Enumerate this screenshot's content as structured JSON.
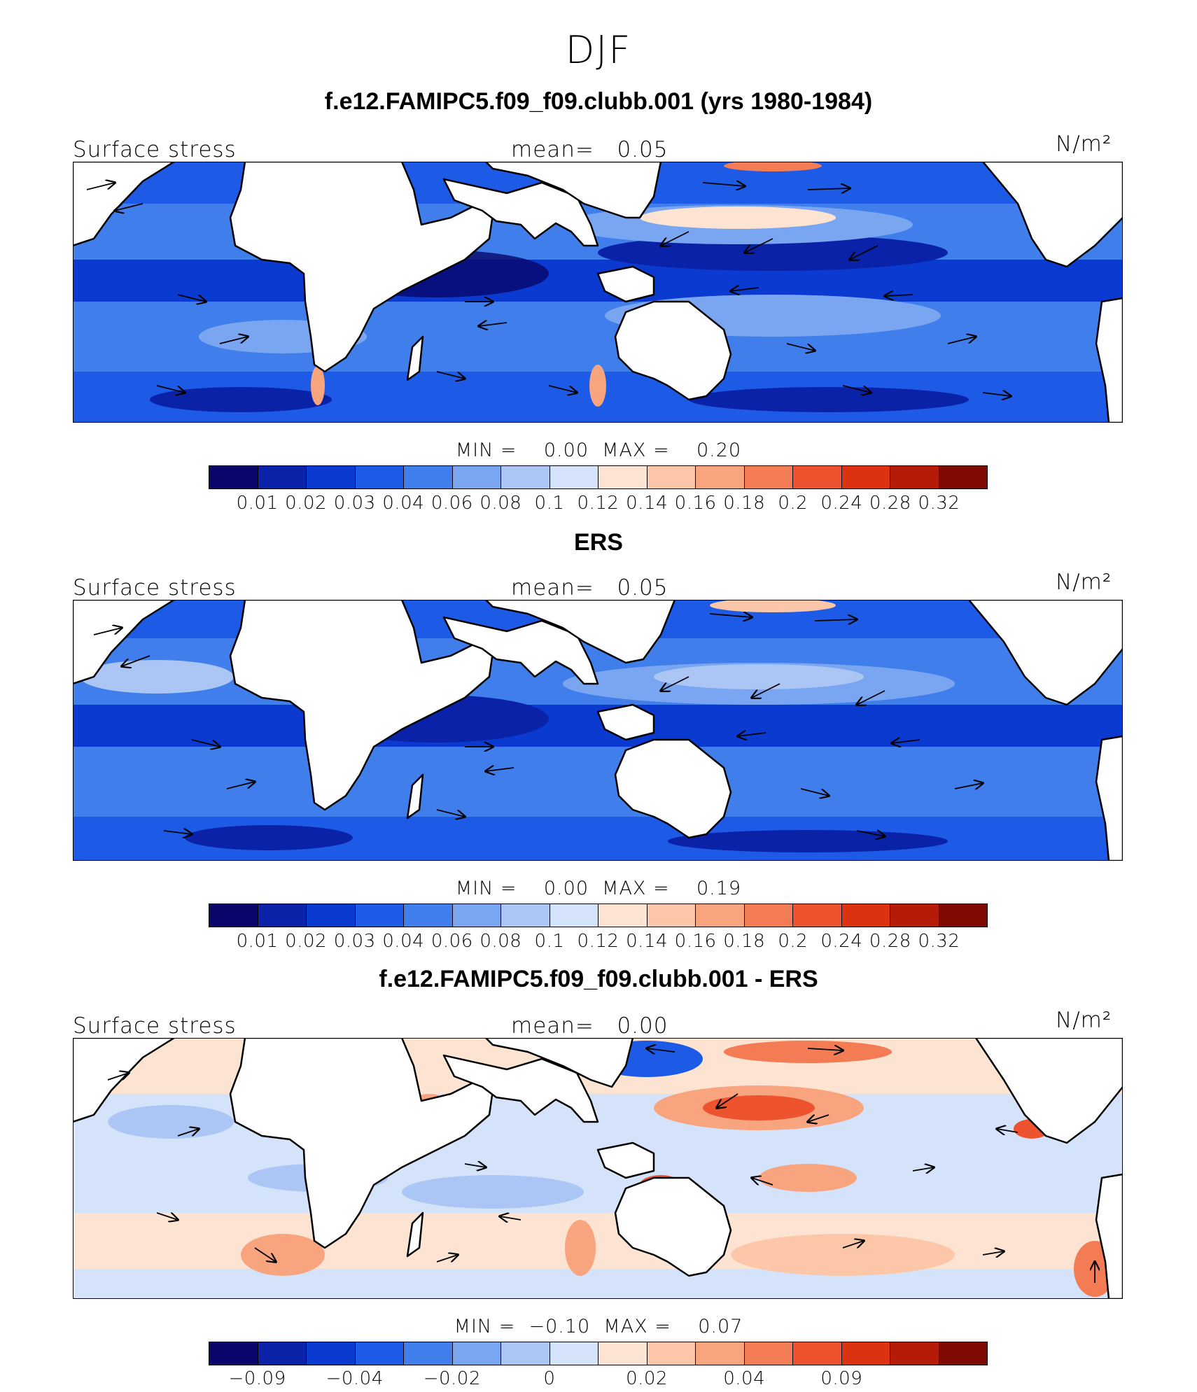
{
  "figure_title": "DJF",
  "palette": [
    "#08066b",
    "#0a22a8",
    "#0b3ad0",
    "#1d5ae6",
    "#3f7eeb",
    "#7aa6f1",
    "#abc6f5",
    "#d4e3fa",
    "#fde3d1",
    "#fbc7a8",
    "#f8a47e",
    "#f47c54",
    "#ee5330",
    "#dc3211",
    "#b41c08",
    "#7f0a02"
  ],
  "panels": [
    {
      "title": "f.e12.FAMIPC5.f09_f09.clubb.001 (yrs 1980-1984)",
      "variable": "Surface stress",
      "mean_label": "mean=   0.05",
      "units": "N/m²",
      "minmax": "MIN =    0.00  MAX =    0.20",
      "tick_labels": [
        "0.01",
        "0.02",
        "0.03",
        "0.04",
        "0.06",
        "0.08",
        "0.1",
        "0.12",
        "0.14",
        "0.16",
        "0.18",
        "0.2",
        "0.24",
        "0.28",
        "0.32"
      ]
    },
    {
      "title": "ERS",
      "variable": "Surface stress",
      "mean_label": "mean=   0.05",
      "units": "N/m²",
      "minmax": "MIN =    0.00  MAX =    0.19",
      "tick_labels": [
        "0.01",
        "0.02",
        "0.03",
        "0.04",
        "0.06",
        "0.08",
        "0.1",
        "0.12",
        "0.14",
        "0.16",
        "0.18",
        "0.2",
        "0.24",
        "0.28",
        "0.32"
      ]
    },
    {
      "title": "f.e12.FAMIPC5.f09_f09.clubb.001 - ERS",
      "variable": "Surface stress",
      "mean_label": "mean=   0.00",
      "units": "N/m²",
      "minmax": "MIN =  −0.10  MAX =    0.07",
      "tick_labels": [
        "−0.09",
        "",
        "−0.04",
        "",
        "−0.02",
        "",
        "0",
        "",
        "0.02",
        "",
        "0.04",
        "",
        "0.09",
        "",
        ""
      ]
    }
  ]
}
